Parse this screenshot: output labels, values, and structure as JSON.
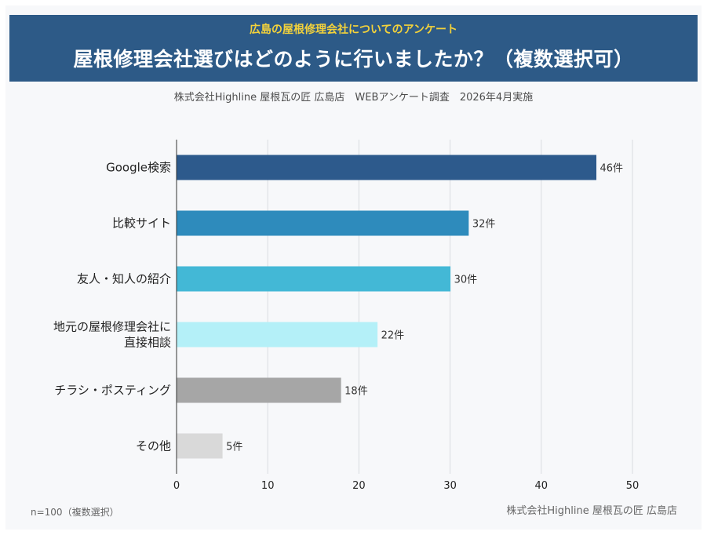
{
  "header": {
    "subtitle": "広島の屋根修理会社についてのアンケート",
    "title": "屋根修理会社選びはどのように行いましたか？（複数選択可）"
  },
  "source_line": "株式会社Highline 屋根瓦の匠 広島店　WEBアンケート調査　2026年4月実施",
  "footnote_left": "n=100（複数選択）",
  "footnote_right": "株式会社Highline 屋根瓦の匠 広島店",
  "chart_data": {
    "type": "bar",
    "orientation": "horizontal",
    "categories": [
      [
        "Google検索"
      ],
      [
        "比較サイト"
      ],
      [
        "友人・知人の紹介"
      ],
      [
        "地元の屋根修理会社に",
        "直接相談"
      ],
      [
        "チラシ・ポスティング"
      ],
      [
        "その他"
      ]
    ],
    "values": [
      46,
      32,
      30,
      22,
      18,
      5
    ],
    "value_labels": [
      "46件",
      "32件",
      "30件",
      "22件",
      "18件",
      "5件"
    ],
    "colors": [
      "#2d5a8c",
      "#2e8bbc",
      "#43b8d6",
      "#b4f0f8",
      "#a6a6a6",
      "#d9d9d9"
    ],
    "xlim": [
      0,
      50
    ],
    "xticks": [
      "0",
      "10",
      "20",
      "30",
      "40",
      "50"
    ],
    "grid": true
  }
}
